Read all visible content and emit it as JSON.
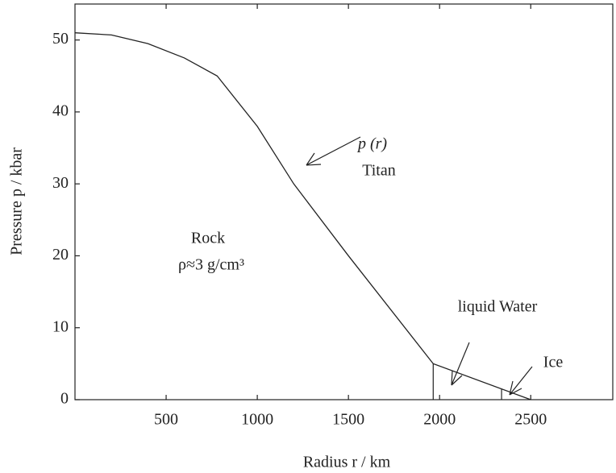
{
  "chart_data": {
    "type": "line",
    "xlabel": "Radius  r / km",
    "ylabel": "Pressure  p / kbar",
    "x": [
      0,
      200,
      400,
      600,
      780,
      1000,
      1200,
      1500,
      1965,
      2500
    ],
    "series": [
      {
        "name": "p (r) Titan",
        "color": "#222222",
        "values": [
          51,
          50.7,
          49.5,
          47.5,
          45,
          38,
          30,
          20,
          5,
          0
        ]
      }
    ],
    "layer_boundaries": [
      1965,
      2340
    ],
    "xlim": [
      0,
      2950
    ],
    "ylim": [
      0,
      55
    ],
    "xticks": [
      500,
      1000,
      1500,
      2000,
      2500
    ],
    "yticks": [
      0,
      10,
      20,
      30,
      40,
      50
    ],
    "annotations": [
      "p (r)",
      "Titan",
      "Rock",
      "ρ≈3 g/cm³",
      "liquid Water",
      "Ice"
    ]
  }
}
